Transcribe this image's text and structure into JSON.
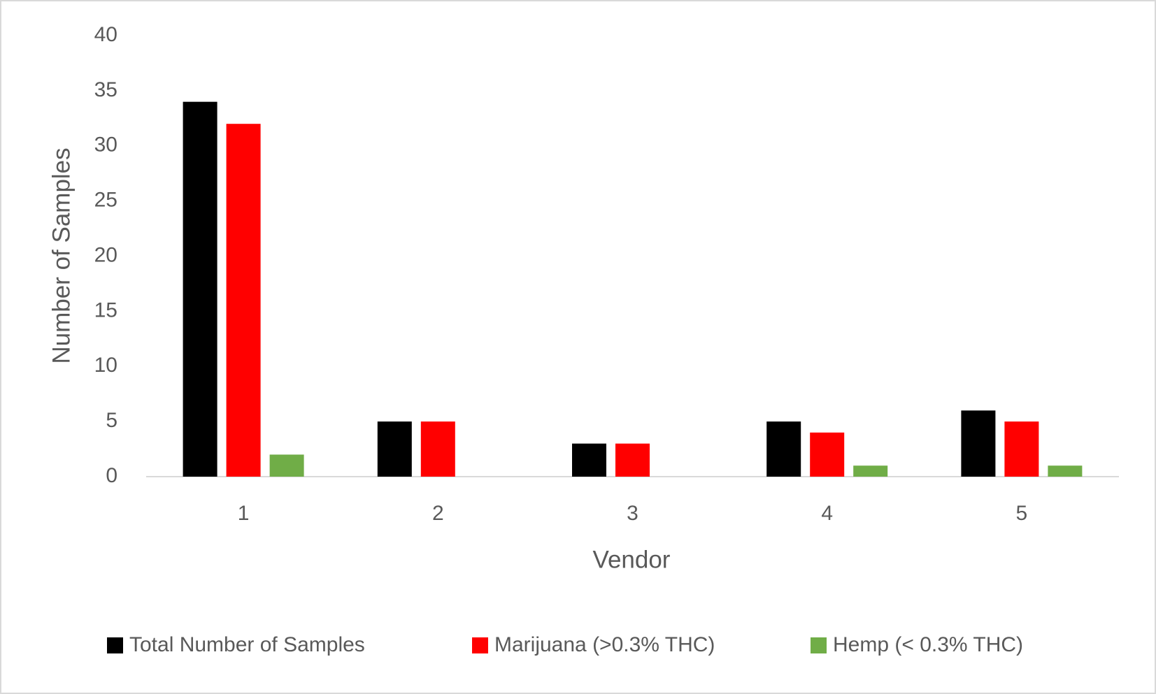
{
  "chart_data": {
    "type": "bar",
    "x_label": "Vendor",
    "y_label": "Number of Samples",
    "categories": [
      "1",
      "2",
      "3",
      "4",
      "5"
    ],
    "series": [
      {
        "name": "Total Number of Samples",
        "color": "#000000",
        "values": [
          34,
          5,
          3,
          5,
          6
        ]
      },
      {
        "name": "Marijuana (>0.3% THC)",
        "color": "#ff0000",
        "values": [
          32,
          5,
          3,
          4,
          5
        ]
      },
      {
        "name": "Hemp (< 0.3% THC)",
        "color": "#70ad47",
        "values": [
          2,
          0,
          0,
          1,
          1
        ]
      }
    ],
    "ylim": [
      0,
      40
    ],
    "yticks": [
      0,
      5,
      10,
      15,
      20,
      25,
      30,
      35,
      40
    ],
    "grid": false,
    "legend": "bottom"
  }
}
